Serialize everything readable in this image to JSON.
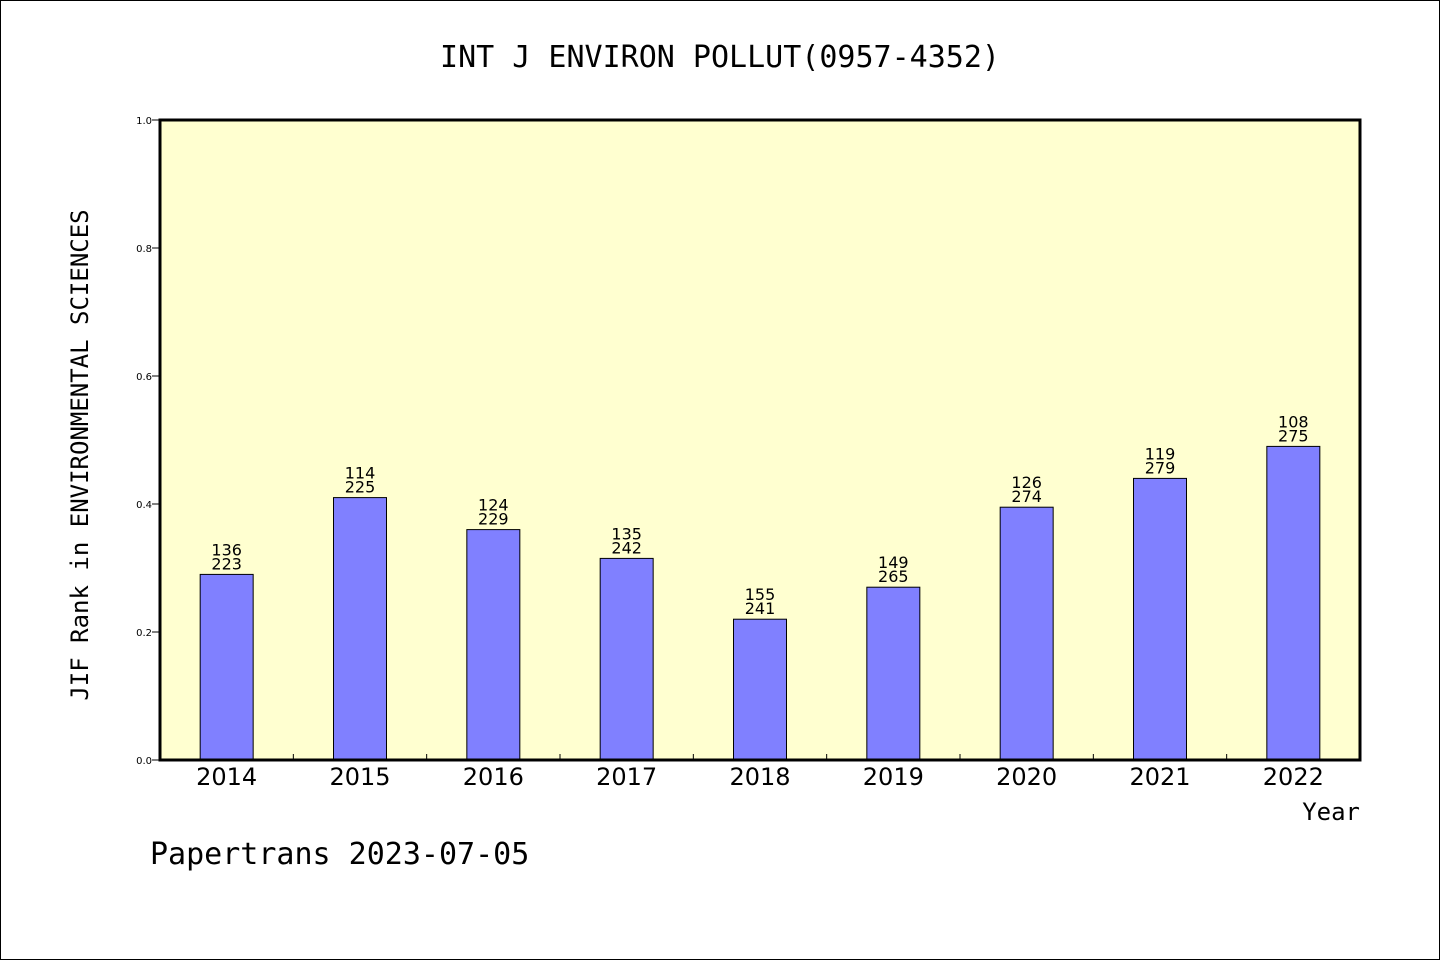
{
  "chart_data": {
    "type": "bar",
    "title": "INT J ENVIRON POLLUT(0957-4352)",
    "ylabel": "JIF Rank in ENVIRONMENTAL SCIENCES",
    "xlabel": "Year",
    "ylim": [
      0,
      1.0
    ],
    "yticks": [
      "0.0",
      "0.2",
      "0.4",
      "0.6",
      "0.8",
      "1.0"
    ],
    "categories": [
      "2014",
      "2015",
      "2016",
      "2017",
      "2018",
      "2019",
      "2020",
      "2021",
      "2022"
    ],
    "values": [
      0.29,
      0.41,
      0.36,
      0.315,
      0.22,
      0.27,
      0.395,
      0.44,
      0.49
    ],
    "rank": [
      "136",
      "114",
      "124",
      "135",
      "155",
      "149",
      "126",
      "119",
      "108"
    ],
    "total": [
      "223",
      "225",
      "229",
      "242",
      "241",
      "265",
      "274",
      "279",
      "275"
    ],
    "plot_background": "#ffffd0",
    "bar_color": "#8080ff",
    "grid": false,
    "legend": "none"
  },
  "footer": "Papertrans 2023-07-05"
}
